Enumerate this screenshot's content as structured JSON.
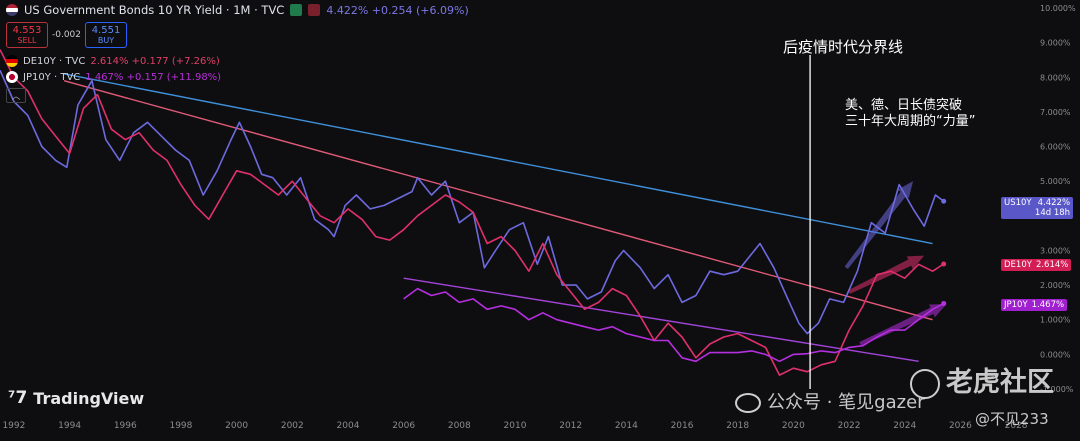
{
  "header": {
    "title": "US Government Bonds 10 YR Yield · 1M · TVC",
    "us_value": "4.422% +0.254 (+6.09%)",
    "sell_price": "4.553",
    "sell_label": "SELL",
    "spread": "-0.002",
    "buy_price": "4.551",
    "buy_label": "BUY",
    "de_label": "DE10Y · TVC",
    "de_value": "2.614% +0.177 (+7.26%)",
    "jp_label": "JP10Y · TVC",
    "jp_value": "1.467% +0.157 (+11.98%)",
    "collapse_icon": "chevron-up-icon"
  },
  "tags": {
    "us_name": "US10Y",
    "us_val": "4.422%",
    "us_timer": "14d 18h",
    "de_name": "DE10Y",
    "de_val": "2.614%",
    "jp_name": "JP10Y",
    "jp_val": "1.467%"
  },
  "annotations": {
    "post_covid": "后疫情时代分界线",
    "line1": "美、德、日长债突破",
    "line2": "三十年大周期的“力量”"
  },
  "branding": {
    "tradingview": "TradingView",
    "tiger": "老虎社区",
    "wechat": "公众号 · 笔见gazer",
    "handle": "@不见233"
  },
  "colors": {
    "us": "#6d6ae0",
    "de": "#e0306b",
    "jp": "#b52fe0",
    "trend_blue": "#3f8fd9",
    "trend_pink": "#e05a78",
    "trend_purple": "#a244d8",
    "bg": "#0e0e10"
  },
  "chart_data": {
    "type": "line",
    "title": "US Government Bonds 10 YR Yield · 1M · TVC",
    "xlabel": "",
    "ylabel": "",
    "xlim": [
      1991.5,
      2028.5
    ],
    "ylim": [
      -1,
      10
    ],
    "y_scale": "percent",
    "grid": false,
    "x_ticks": [
      "1992",
      "1994",
      "1996",
      "1998",
      "2000",
      "2002",
      "2004",
      "2006",
      "2008",
      "2010",
      "2012",
      "2014",
      "2016",
      "2018",
      "2020",
      "2022",
      "2024",
      "2026",
      "2028"
    ],
    "y_ticks": [
      "10.000%",
      "9.000%",
      "8.000%",
      "7.000%",
      "6.000%",
      "5.000%",
      "4.000%",
      "3.000%",
      "2.000%",
      "1.000%",
      "0.000%",
      "-1.000%"
    ],
    "series": [
      {
        "name": "US10Y",
        "color": "#6d6ae0",
        "x": [
          1991.5,
          1992,
          1992.5,
          1993,
          1993.5,
          1993.9,
          1994.3,
          1994.8,
          1995.3,
          1995.8,
          1996.3,
          1996.8,
          1997.3,
          1997.8,
          1998.3,
          1998.8,
          1999.3,
          1999.8,
          2000.1,
          2000.5,
          2000.9,
          2001.3,
          2001.8,
          2002.3,
          2002.8,
          2003.3,
          2003.5,
          2003.9,
          2004.3,
          2004.8,
          2005.3,
          2005.8,
          2006.3,
          2006.5,
          2007,
          2007.5,
          2008,
          2008.5,
          2008.9,
          2009.3,
          2009.8,
          2010.3,
          2010.8,
          2011.2,
          2011.7,
          2012.2,
          2012.6,
          2013.1,
          2013.6,
          2013.9,
          2014.5,
          2015,
          2015.5,
          2016,
          2016.5,
          2017,
          2017.5,
          2018,
          2018.8,
          2019.3,
          2019.8,
          2020.2,
          2020.5,
          2020.9,
          2021.3,
          2021.8,
          2022.3,
          2022.8,
          2023.3,
          2023.8,
          2024.3,
          2024.7,
          2025.1,
          2025.4
        ],
        "values": [
          8.2,
          7.3,
          6.9,
          6.0,
          5.6,
          5.4,
          7.2,
          7.9,
          6.2,
          5.6,
          6.4,
          6.7,
          6.3,
          5.9,
          5.6,
          4.6,
          5.3,
          6.2,
          6.7,
          6.0,
          5.2,
          5.1,
          4.6,
          5.1,
          3.9,
          3.6,
          3.4,
          4.3,
          4.6,
          4.2,
          4.3,
          4.5,
          4.7,
          5.1,
          4.6,
          5.0,
          3.8,
          4.1,
          2.5,
          3.0,
          3.6,
          3.8,
          2.6,
          3.4,
          2.0,
          2.0,
          1.6,
          1.8,
          2.7,
          3.0,
          2.5,
          1.9,
          2.3,
          1.5,
          1.7,
          2.4,
          2.3,
          2.4,
          3.2,
          2.5,
          1.6,
          0.9,
          0.6,
          0.9,
          1.6,
          1.5,
          2.4,
          3.8,
          3.5,
          4.9,
          4.2,
          3.7,
          4.6,
          4.42
        ]
      },
      {
        "name": "DE10Y",
        "color": "#e0306b",
        "x": [
          1991.5,
          1992,
          1992.5,
          1993,
          1993.5,
          1994,
          1994.5,
          1995,
          1995.5,
          1996,
          1996.5,
          1997,
          1997.5,
          1998,
          1998.5,
          1999,
          1999.5,
          2000,
          2000.5,
          2001,
          2001.5,
          2002,
          2002.5,
          2003,
          2003.5,
          2004,
          2004.5,
          2005,
          2005.5,
          2006,
          2006.5,
          2007,
          2007.5,
          2008,
          2008.5,
          2009,
          2009.5,
          2010,
          2010.5,
          2011,
          2011.5,
          2012,
          2012.5,
          2013,
          2013.5,
          2014,
          2014.5,
          2015,
          2015.5,
          2016,
          2016.5,
          2017,
          2017.5,
          2018,
          2018.5,
          2019,
          2019.5,
          2020,
          2020.5,
          2021,
          2021.5,
          2022,
          2022.5,
          2023,
          2023.5,
          2024,
          2024.5,
          2025,
          2025.4
        ],
        "values": [
          8.8,
          8.0,
          7.6,
          6.8,
          6.3,
          5.8,
          7.1,
          7.5,
          6.5,
          6.2,
          6.4,
          5.9,
          5.6,
          4.9,
          4.3,
          3.9,
          4.6,
          5.3,
          5.2,
          4.9,
          4.6,
          5.0,
          4.5,
          4.0,
          3.8,
          4.2,
          3.9,
          3.4,
          3.3,
          3.6,
          4.0,
          4.3,
          4.6,
          4.4,
          4.1,
          3.2,
          3.4,
          3.0,
          2.4,
          3.2,
          2.3,
          1.8,
          1.3,
          1.5,
          1.9,
          1.7,
          1.1,
          0.4,
          0.9,
          0.5,
          -0.1,
          0.3,
          0.5,
          0.6,
          0.4,
          0.2,
          -0.6,
          -0.4,
          -0.5,
          -0.3,
          -0.2,
          0.7,
          1.4,
          2.3,
          2.4,
          2.2,
          2.6,
          2.4,
          2.61
        ]
      },
      {
        "name": "JP10Y",
        "color": "#b52fe0",
        "x": [
          2006,
          2006.5,
          2007,
          2007.5,
          2008,
          2008.5,
          2009,
          2009.5,
          2010,
          2010.5,
          2011,
          2011.5,
          2012,
          2012.5,
          2013,
          2013.5,
          2014,
          2014.5,
          2015,
          2015.5,
          2016,
          2016.5,
          2017,
          2017.5,
          2018,
          2018.5,
          2019,
          2019.5,
          2020,
          2020.5,
          2021,
          2021.5,
          2022,
          2022.5,
          2023,
          2023.5,
          2024,
          2024.5,
          2025,
          2025.4
        ],
        "values": [
          1.6,
          1.9,
          1.7,
          1.8,
          1.5,
          1.6,
          1.3,
          1.4,
          1.3,
          1.0,
          1.2,
          1.0,
          0.9,
          0.8,
          0.7,
          0.8,
          0.6,
          0.5,
          0.4,
          0.4,
          -0.1,
          -0.2,
          0.05,
          0.05,
          0.05,
          0.1,
          0.0,
          -0.2,
          0.0,
          0.02,
          0.1,
          0.05,
          0.2,
          0.25,
          0.5,
          0.7,
          0.7,
          1.0,
          1.3,
          1.47
        ]
      }
    ]
  }
}
